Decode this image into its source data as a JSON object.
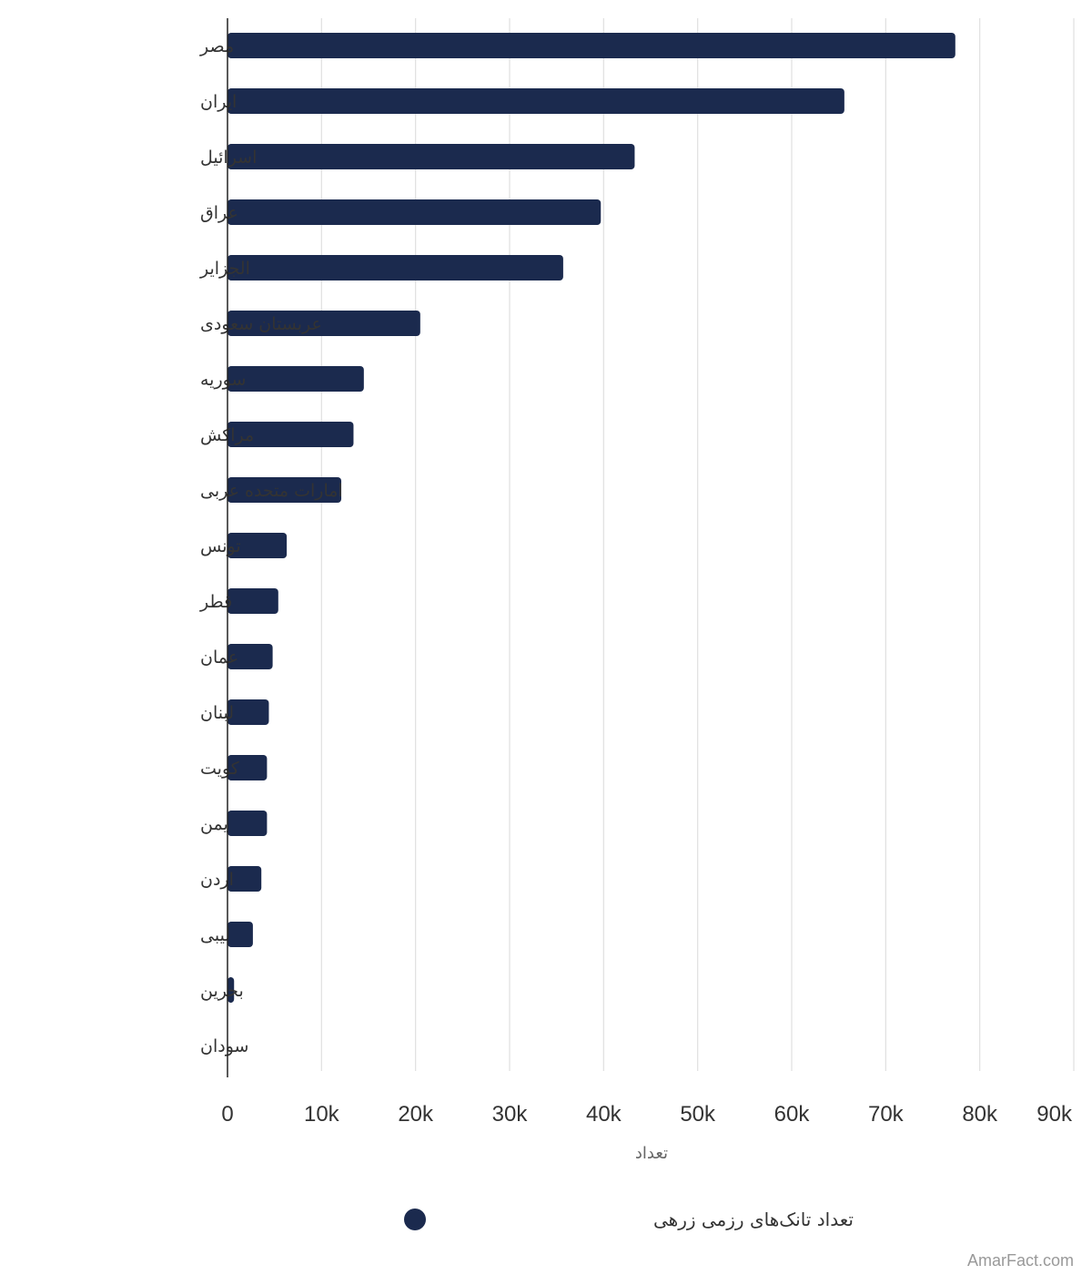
{
  "chart_data": {
    "type": "bar",
    "orientation": "horizontal",
    "categories": [
      "مصر",
      "ایران",
      "اسرائیل",
      "عراق",
      "الجزایر",
      "عربستان سعودی",
      "سوریه",
      "مراکش",
      "امارات متحده عربی",
      "تونس",
      "قطر",
      "عمان",
      "لبنان",
      "کویت",
      "یمن",
      "اردن",
      "لیبی",
      "بحرین",
      "سودان"
    ],
    "series": [
      {
        "name": "تعداد تانک‌های رزمی زرهی",
        "color": "#1b2a4e",
        "values": [
          77400,
          65600,
          43300,
          39700,
          35700,
          20500,
          14500,
          13400,
          12100,
          6300,
          5400,
          4800,
          4400,
          4200,
          4200,
          3600,
          2700,
          700,
          0
        ]
      }
    ],
    "xlabel": "تعداد",
    "xlim": [
      0,
      90000
    ],
    "xticks": [
      0,
      10000,
      20000,
      30000,
      40000,
      50000,
      60000,
      70000,
      80000,
      90000
    ],
    "xtick_labels": [
      "0",
      "10k",
      "20k",
      "30k",
      "40k",
      "50k",
      "60k",
      "70k",
      "80k",
      "90k"
    ],
    "grid": true,
    "legend_position": "bottom-center"
  },
  "credit": "AmarFact.com"
}
